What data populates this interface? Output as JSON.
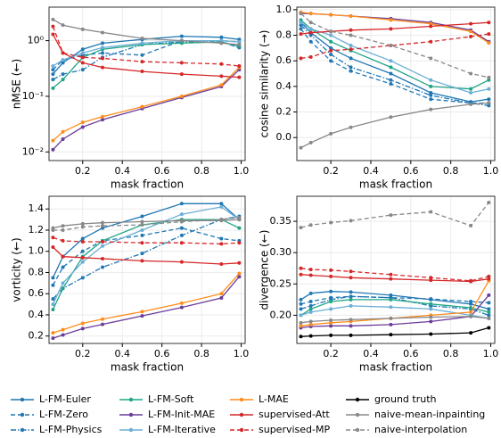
{
  "legend": [
    {
      "name": "L-FM-Euler",
      "color": "#1f77b4",
      "dash": "solid"
    },
    {
      "name": "L-FM-Zero",
      "color": "#1f77b4",
      "dash": "dashed"
    },
    {
      "name": "L-FM-Physics",
      "color": "#1f77b4",
      "dash": "dashdot"
    },
    {
      "name": "L-FM-Soft",
      "color": "#1fa586",
      "dash": "solid"
    },
    {
      "name": "L-FM-Init-MAE",
      "color": "#6a3d9a",
      "dash": "solid"
    },
    {
      "name": "L-FM-Iterative",
      "color": "#6baed6",
      "dash": "solid"
    },
    {
      "name": "L-MAE",
      "color": "#ff8c1a",
      "dash": "solid"
    },
    {
      "name": "supervised-Att",
      "color": "#d62728",
      "dash": "solid"
    },
    {
      "name": "supervised-MP",
      "color": "#d62728",
      "dash": "dashed"
    },
    {
      "name": "ground truth",
      "color": "#000000",
      "dash": "solid"
    },
    {
      "name": "naive-mean-inpainting",
      "color": "#888888",
      "dash": "solid"
    },
    {
      "name": "naive-interpolation",
      "color": "#888888",
      "dash": "dashed"
    }
  ],
  "chart_data": [
    {
      "type": "line",
      "ylabel": "nMSE (←)",
      "xlabel": "mask fraction",
      "yscale": "log",
      "grid": true,
      "x": [
        0.05,
        0.1,
        0.2,
        0.3,
        0.5,
        0.7,
        0.9,
        0.99
      ],
      "xlim": [
        0.03,
        1.02
      ],
      "xticks": [
        0.2,
        0.4,
        0.6,
        0.8,
        {
          "value": 1,
          "label": "1.0"
        }
      ],
      "ylim": [
        0.007,
        4
      ],
      "yticks": [
        {
          "value": 0.01,
          "label": "10⁻²"
        },
        {
          "value": 0.1,
          "label": "10⁻¹"
        },
        {
          "value": 1,
          "label": "10⁰"
        }
      ],
      "series": [
        {
          "values": [
            0.25,
            0.4,
            0.7,
            0.9,
            1.05,
            1.2,
            1.15,
            1.05
          ]
        },
        {
          "values": [
            0.3,
            0.45,
            0.55,
            0.6,
            0.55,
            1.0,
            1.0,
            0.95
          ]
        },
        {
          "values": [
            0.2,
            0.25,
            0.3,
            0.5,
            0.85,
            0.95,
            0.95,
            0.75
          ]
        },
        {
          "values": [
            0.14,
            0.2,
            0.5,
            0.7,
            0.85,
            0.9,
            0.95,
            0.8
          ]
        },
        {
          "values": [
            0.011,
            0.017,
            0.028,
            0.038,
            0.06,
            0.095,
            0.15,
            0.3
          ]
        },
        {
          "values": [
            0.35,
            0.45,
            0.6,
            0.75,
            0.9,
            1.0,
            1.0,
            0.95
          ]
        },
        {
          "values": [
            0.016,
            0.023,
            0.034,
            0.043,
            0.065,
            0.1,
            0.16,
            0.33
          ]
        },
        {
          "values": [
            1.3,
            0.6,
            0.4,
            0.33,
            0.28,
            0.25,
            0.23,
            0.22
          ]
        },
        {
          "values": [
            1.8,
            0.6,
            0.5,
            0.48,
            0.42,
            0.4,
            0.38,
            0.35
          ]
        },
        {
          "values": [
            null,
            null,
            null,
            null,
            null,
            null,
            null,
            null
          ]
        },
        {
          "values": [
            2.4,
            1.9,
            1.6,
            1.4,
            1.1,
            1.0,
            0.9,
            0.85
          ]
        },
        {
          "values": [
            null,
            null,
            null,
            null,
            null,
            null,
            null,
            null
          ]
        }
      ]
    },
    {
      "type": "line",
      "ylabel": "cosine similarity (→)",
      "xlabel": "mask fraction",
      "grid": true,
      "x": [
        0.05,
        0.1,
        0.2,
        0.3,
        0.5,
        0.7,
        0.9,
        0.99
      ],
      "xlim": [
        0.03,
        1.02
      ],
      "xticks": [
        0.2,
        0.4,
        0.6,
        0.8,
        {
          "value": 1,
          "label": "1.0"
        }
      ],
      "ylim": [
        -0.18,
        1.02
      ],
      "yticks": [
        {
          "value": 0,
          "label": "0.0"
        },
        0.2,
        0.4,
        0.6,
        0.8,
        {
          "value": 1,
          "label": "1.0"
        }
      ],
      "series": [
        {
          "values": [
            0.9,
            0.82,
            0.7,
            0.62,
            0.5,
            0.35,
            0.28,
            0.3
          ]
        },
        {
          "values": [
            0.85,
            0.75,
            0.6,
            0.52,
            0.42,
            0.3,
            0.27,
            0.27
          ]
        },
        {
          "values": [
            0.88,
            0.8,
            0.65,
            0.55,
            0.45,
            0.33,
            0.27,
            0.25
          ]
        },
        {
          "values": [
            0.92,
            0.85,
            0.75,
            0.68,
            0.55,
            0.4,
            0.38,
            0.45
          ]
        },
        {
          "values": [
            0.97,
            0.97,
            0.96,
            0.95,
            0.93,
            0.9,
            0.84,
            0.75
          ]
        },
        {
          "values": [
            0.9,
            0.85,
            0.8,
            0.72,
            0.6,
            0.45,
            0.35,
            0.38
          ]
        },
        {
          "values": [
            0.98,
            0.97,
            0.96,
            0.95,
            0.92,
            0.89,
            0.83,
            0.74
          ]
        },
        {
          "values": [
            0.81,
            0.82,
            0.83,
            0.84,
            0.85,
            0.87,
            0.89,
            0.9
          ]
        },
        {
          "values": [
            0.62,
            0.63,
            0.68,
            0.69,
            0.72,
            0.75,
            0.79,
            0.81
          ]
        },
        {
          "values": [
            null,
            null,
            null,
            null,
            null,
            null,
            null,
            null
          ]
        },
        {
          "values": [
            -0.08,
            -0.04,
            0.03,
            0.08,
            0.16,
            0.22,
            0.26,
            0.27
          ]
        },
        {
          "values": [
            0.97,
            0.9,
            0.83,
            0.8,
            0.72,
            0.62,
            0.5,
            0.47
          ]
        }
      ]
    },
    {
      "type": "line",
      "ylabel": "vorticity (←)",
      "xlabel": "mask fraction",
      "grid": true,
      "x": [
        0.05,
        0.1,
        0.2,
        0.3,
        0.5,
        0.7,
        0.9,
        0.99
      ],
      "xlim": [
        0.03,
        1.02
      ],
      "xticks": [
        0.2,
        0.4,
        0.6,
        0.8,
        {
          "value": 1,
          "label": "1.0"
        }
      ],
      "ylim": [
        0.13,
        1.52
      ],
      "yticks": [
        0.2,
        0.4,
        0.6,
        0.8,
        {
          "value": 1,
          "label": "1.0"
        },
        1.2,
        1.4
      ],
      "series": [
        {
          "values": [
            0.75,
            0.95,
            1.12,
            1.22,
            1.33,
            1.45,
            1.45,
            1.3
          ]
        },
        {
          "values": [
            0.68,
            0.85,
            1.0,
            1.1,
            1.15,
            1.22,
            1.12,
            1.1
          ]
        },
        {
          "values": [
            0.55,
            0.65,
            0.75,
            0.85,
            0.98,
            1.15,
            1.3,
            1.33
          ]
        },
        {
          "values": [
            0.45,
            0.65,
            0.95,
            1.1,
            1.25,
            1.3,
            1.3,
            1.22
          ]
        },
        {
          "values": [
            0.18,
            0.21,
            0.27,
            0.31,
            0.39,
            0.47,
            0.56,
            0.76
          ]
        },
        {
          "values": [
            0.5,
            0.7,
            0.9,
            1.05,
            1.2,
            1.35,
            1.42,
            1.3
          ]
        },
        {
          "values": [
            0.23,
            0.26,
            0.32,
            0.36,
            0.43,
            0.51,
            0.6,
            0.79
          ]
        },
        {
          "values": [
            1.04,
            0.95,
            0.94,
            0.93,
            0.91,
            0.9,
            0.88,
            0.89
          ]
        },
        {
          "values": [
            1.13,
            1.1,
            1.09,
            1.09,
            1.08,
            1.08,
            1.07,
            1.08
          ]
        },
        {
          "values": [
            null,
            null,
            null,
            null,
            null,
            null,
            null,
            null
          ]
        },
        {
          "values": [
            1.22,
            1.24,
            1.26,
            1.27,
            1.28,
            1.29,
            1.29,
            1.3
          ]
        },
        {
          "values": [
            1.2,
            1.2,
            1.23,
            1.24,
            1.25,
            1.28,
            1.3,
            1.32
          ]
        }
      ]
    },
    {
      "type": "line",
      "ylabel": "divergence (←)",
      "xlabel": "mask fraction",
      "grid": true,
      "x": [
        0.05,
        0.1,
        0.2,
        0.3,
        0.5,
        0.7,
        0.9,
        0.99
      ],
      "xlim": [
        0.03,
        1.02
      ],
      "xticks": [
        0.2,
        0.4,
        0.6,
        0.8,
        {
          "value": 1,
          "label": "1.0"
        }
      ],
      "ylim": [
        0.155,
        0.39
      ],
      "yticks": [
        {
          "value": 0.2,
          "label": "0.20"
        },
        0.25,
        {
          "value": 0.3,
          "label": "0.30"
        },
        0.35
      ],
      "series": [
        {
          "values": [
            0.225,
            0.235,
            0.238,
            0.237,
            0.232,
            0.225,
            0.218,
            0.21
          ]
        },
        {
          "values": [
            0.218,
            0.222,
            0.228,
            0.23,
            0.228,
            0.226,
            0.222,
            0.22
          ]
        },
        {
          "values": [
            0.21,
            0.215,
            0.225,
            0.23,
            0.228,
            0.215,
            0.21,
            0.2
          ]
        },
        {
          "values": [
            0.2,
            0.21,
            0.222,
            0.225,
            0.225,
            0.218,
            0.212,
            0.205
          ]
        },
        {
          "values": [
            0.18,
            0.182,
            0.183,
            0.183,
            0.185,
            0.19,
            0.198,
            0.232
          ]
        },
        {
          "values": [
            0.2,
            0.205,
            0.21,
            0.215,
            0.213,
            0.21,
            0.2,
            0.195
          ]
        },
        {
          "values": [
            0.183,
            0.185,
            0.188,
            0.19,
            0.195,
            0.2,
            0.205,
            0.255
          ]
        },
        {
          "values": [
            0.265,
            0.264,
            0.262,
            0.26,
            0.258,
            0.256,
            0.254,
            0.258
          ]
        },
        {
          "values": [
            0.275,
            0.273,
            0.272,
            0.27,
            0.265,
            0.26,
            0.255,
            0.262
          ]
        },
        {
          "values": [
            0.166,
            0.167,
            0.168,
            0.168,
            0.169,
            0.17,
            0.172,
            0.18
          ]
        },
        {
          "values": [
            0.188,
            0.19,
            0.192,
            0.193,
            0.195,
            0.197,
            0.198,
            0.195
          ]
        },
        {
          "values": [
            0.34,
            0.344,
            0.348,
            0.351,
            0.36,
            0.365,
            0.343,
            0.38
          ]
        }
      ]
    }
  ]
}
